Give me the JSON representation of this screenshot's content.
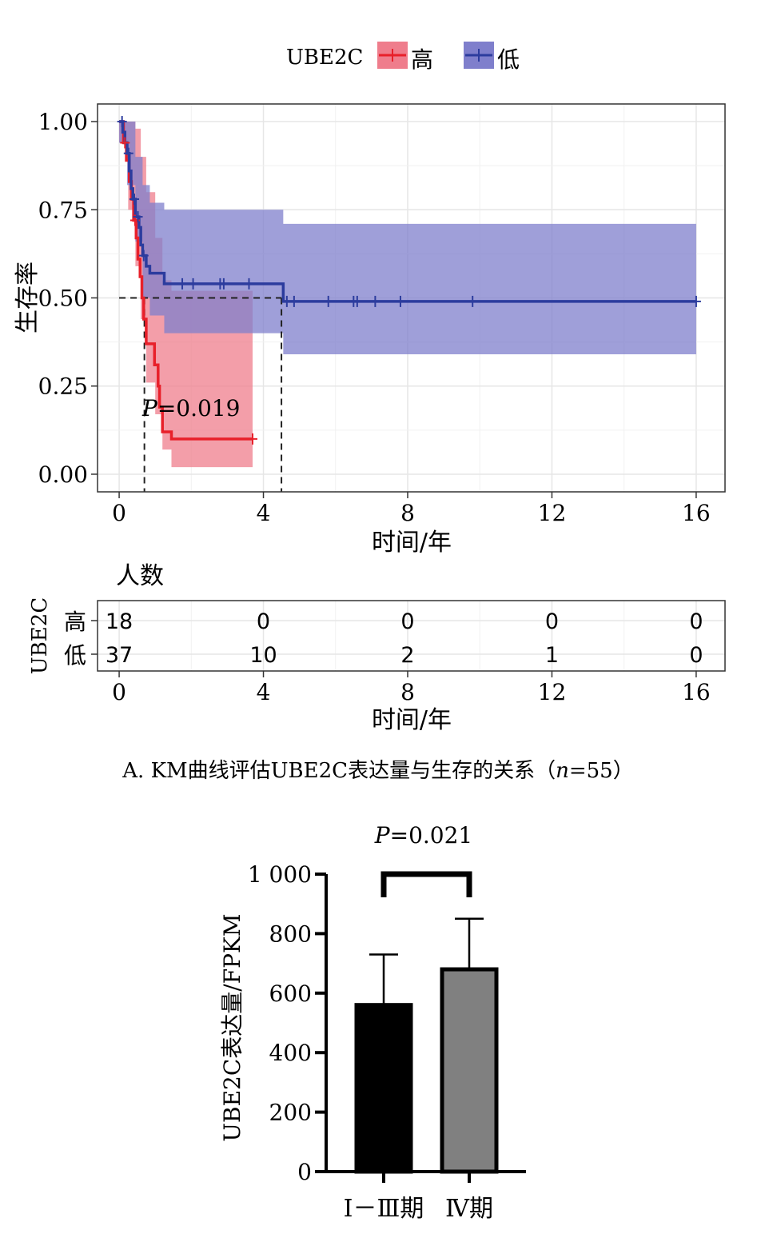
{
  "chart_data": [
    {
      "type": "line",
      "subtype": "kaplan-meier",
      "legend": {
        "title": "UBE2C",
        "position": "top",
        "entries": [
          {
            "name": "高",
            "color": "#e8202a",
            "ci_color": "#ef7d8c"
          },
          {
            "name": "低",
            "color": "#2c3c9e",
            "ci_color": "#7f7fcc"
          }
        ]
      },
      "xlabel": "时间/年",
      "ylabel": "生存率",
      "xlim": [
        -0.6,
        16.8
      ],
      "ylim": [
        -0.05,
        1.05
      ],
      "xticks": [
        0,
        4,
        8,
        12,
        16
      ],
      "xtick_labels": [
        "0",
        "4",
        "8",
        "12",
        "16"
      ],
      "yticks": [
        0,
        0.25,
        0.5,
        0.75,
        1
      ],
      "ytick_labels": [
        "0.00",
        "0.25",
        "0.50",
        "0.75",
        "1.00"
      ],
      "grid": true,
      "annotation": {
        "italic": "P",
        "text": "=0.019",
        "x": 0.5,
        "y": 0.19
      },
      "median_lines": [
        {
          "x": 0.7,
          "y": 0.5
        },
        {
          "x": 4.5,
          "y": 0.5
        }
      ],
      "series": [
        {
          "name": "高",
          "color": "#e8202a",
          "steps": [
            [
              0,
              1.0
            ],
            [
              0.12,
              0.94
            ],
            [
              0.2,
              0.89
            ],
            [
              0.28,
              0.83
            ],
            [
              0.34,
              0.78
            ],
            [
              0.4,
              0.72
            ],
            [
              0.47,
              0.67
            ],
            [
              0.52,
              0.61
            ],
            [
              0.58,
              0.56
            ],
            [
              0.63,
              0.5
            ],
            [
              0.68,
              0.44
            ],
            [
              0.75,
              0.37
            ],
            [
              0.98,
              0.31
            ],
            [
              1.08,
              0.25
            ],
            [
              1.12,
              0.19
            ],
            [
              1.2,
              0.12
            ],
            [
              1.45,
              0.1
            ],
            [
              3.7,
              0.1
            ]
          ],
          "censor_x": [
            0.16,
            0.44,
            3.7
          ],
          "ci": [
            [
              0,
              0.94,
              1.0
            ],
            [
              0.25,
              0.75,
              1.0
            ],
            [
              0.45,
              0.59,
              0.98
            ],
            [
              0.6,
              0.44,
              0.9
            ],
            [
              0.75,
              0.26,
              0.8
            ],
            [
              1.0,
              0.17,
              0.67
            ],
            [
              1.2,
              0.07,
              0.55
            ],
            [
              1.45,
              0.02,
              0.52
            ],
            [
              3.7,
              0.02,
              0.52
            ]
          ]
        },
        {
          "name": "低",
          "color": "#2c3c9e",
          "steps": [
            [
              0,
              1.0
            ],
            [
              0.1,
              0.97
            ],
            [
              0.16,
              0.94
            ],
            [
              0.22,
              0.91
            ],
            [
              0.28,
              0.86
            ],
            [
              0.33,
              0.81
            ],
            [
              0.38,
              0.78
            ],
            [
              0.45,
              0.73
            ],
            [
              0.55,
              0.7
            ],
            [
              0.6,
              0.65
            ],
            [
              0.65,
              0.62
            ],
            [
              0.75,
              0.59
            ],
            [
              0.85,
              0.57
            ],
            [
              1.25,
              0.54
            ],
            [
              4.55,
              0.49
            ],
            [
              16.0,
              0.49
            ]
          ],
          "censor_x": [
            0.08,
            0.26,
            0.42,
            0.52,
            0.68,
            1.75,
            2.05,
            2.8,
            2.9,
            3.6,
            4.65,
            4.85,
            5.8,
            6.5,
            6.6,
            7.1,
            7.8,
            9.8,
            16.0
          ],
          "ci": [
            [
              0,
              0.94,
              1.0
            ],
            [
              0.22,
              0.82,
              1.0
            ],
            [
              0.45,
              0.66,
              0.9
            ],
            [
              0.65,
              0.5,
              0.82
            ],
            [
              0.85,
              0.45,
              0.77
            ],
            [
              1.25,
              0.4,
              0.75
            ],
            [
              4.55,
              0.34,
              0.71
            ],
            [
              16.0,
              0.34,
              0.71
            ]
          ]
        }
      ]
    },
    {
      "type": "table",
      "title": "人数",
      "ylabel": "UBE2C",
      "xlabel": "时间/年",
      "x": [
        0,
        4,
        8,
        12,
        16
      ],
      "xtick_labels": [
        "0",
        "4",
        "8",
        "12",
        "16"
      ],
      "rows": [
        {
          "name": "高",
          "values": [
            "18",
            "0",
            "0",
            "0",
            "0"
          ]
        },
        {
          "name": "低",
          "values": [
            "37",
            "10",
            "2",
            "1",
            "0"
          ]
        }
      ]
    },
    {
      "type": "bar",
      "categories": [
        "Ⅰ－Ⅲ期",
        "Ⅳ期"
      ],
      "values": [
        560,
        680
      ],
      "errors": [
        170,
        170
      ],
      "colors": [
        "#000000",
        "#808080"
      ],
      "ylabel": "UBE2C表达量/FPKM",
      "ylim": [
        0,
        1000
      ],
      "yticks": [
        0,
        200,
        400,
        600,
        800,
        1000
      ],
      "ytick_labels": [
        "0",
        "200",
        "400",
        "600",
        "800",
        "1 000"
      ],
      "annotation": {
        "italic": "P",
        "text": "=0.021"
      }
    }
  ],
  "captions": {
    "panel_a": "A. KM曲线评估UBE2C表达量与生存的关系（",
    "panel_a_n": "n",
    "panel_a_tail": "=55）"
  }
}
